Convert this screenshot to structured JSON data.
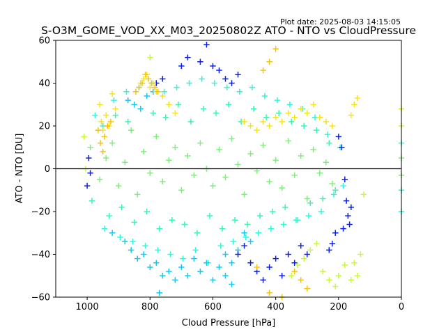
{
  "chart_data": {
    "type": "scatter",
    "title": "S-O3M_GOME_VOD_XX_M03_20250802Z ATO - NTO vs CloudPressure",
    "plot_date": "Plot date: 2025-08-03 14:15:05",
    "xlabel": "Cloud Pressure [hPa]",
    "ylabel": "ATO - NTO [DU]",
    "xlim": [
      1100,
      0
    ],
    "ylim": [
      -60,
      60
    ],
    "x_inverted": true,
    "xticks": [
      1000,
      800,
      600,
      400,
      200,
      0
    ],
    "xtick_labels": [
      "1000",
      "800",
      "600",
      "400",
      "200",
      "0"
    ],
    "yticks": [
      -60,
      -40,
      -20,
      0,
      20,
      40,
      60
    ],
    "ytick_labels": [
      "−60",
      "−40",
      "−20",
      "0",
      "20",
      "40",
      "60"
    ],
    "zero_line": 0,
    "marker": "+",
    "grid": false,
    "colors": {
      "light_green": "#7ef07a",
      "aqua_green": "#38f5b0",
      "cyan": "#2afadc",
      "sky": "#12c8f5",
      "blue": "#0a1ef0",
      "yellow": "#f8e31a",
      "orange": "#f8c010",
      "lime": "#c8f83a"
    },
    "series": [
      {
        "color": "light_green",
        "points": [
          [
            990,
            10
          ],
          [
            960,
            -5
          ],
          [
            940,
            5
          ],
          [
            920,
            12
          ],
          [
            900,
            -8
          ],
          [
            880,
            3
          ],
          [
            860,
            18
          ],
          [
            840,
            -12
          ],
          [
            820,
            8
          ],
          [
            800,
            -2
          ],
          [
            780,
            15
          ],
          [
            760,
            -6
          ],
          [
            740,
            4
          ],
          [
            720,
            10
          ],
          [
            700,
            -10
          ],
          [
            680,
            6
          ],
          [
            660,
            -3
          ],
          [
            640,
            12
          ],
          [
            620,
            0
          ],
          [
            600,
            -8
          ],
          [
            580,
            9
          ],
          [
            560,
            -4
          ],
          [
            540,
            14
          ],
          [
            520,
            2
          ],
          [
            500,
            -12
          ],
          [
            480,
            7
          ],
          [
            460,
            -1
          ],
          [
            440,
            11
          ],
          [
            420,
            -6
          ],
          [
            400,
            4
          ],
          [
            380,
            -9
          ],
          [
            360,
            13
          ],
          [
            340,
            -3
          ],
          [
            320,
            6
          ],
          [
            300,
            -14
          ],
          [
            280,
            9
          ],
          [
            260,
            -2
          ],
          [
            240,
            3
          ],
          [
            220,
            -7
          ],
          [
            0,
            5
          ],
          [
            0,
            -3
          ]
        ]
      },
      {
        "color": "aqua_green",
        "points": [
          [
            985,
            -15
          ],
          [
            950,
            20
          ],
          [
            930,
            -22
          ],
          [
            910,
            25
          ],
          [
            890,
            -18
          ],
          [
            870,
            22
          ],
          [
            850,
            -25
          ],
          [
            830,
            28
          ],
          [
            810,
            -20
          ],
          [
            790,
            26
          ],
          [
            770,
            -28
          ],
          [
            750,
            24
          ],
          [
            730,
            -24
          ],
          [
            710,
            30
          ],
          [
            690,
            -26
          ],
          [
            670,
            22
          ],
          [
            650,
            -30
          ],
          [
            630,
            28
          ],
          [
            610,
            -22
          ],
          [
            590,
            26
          ],
          [
            570,
            -28
          ],
          [
            550,
            30
          ],
          [
            530,
            -24
          ],
          [
            510,
            22
          ],
          [
            490,
            -26
          ],
          [
            470,
            28
          ],
          [
            450,
            -22
          ],
          [
            430,
            24
          ],
          [
            410,
            -20
          ],
          [
            390,
            26
          ],
          [
            370,
            -18
          ],
          [
            350,
            22
          ],
          [
            330,
            -24
          ],
          [
            310,
            20
          ],
          [
            290,
            -16
          ],
          [
            270,
            18
          ],
          [
            250,
            -14
          ],
          [
            230,
            12
          ],
          [
            210,
            -10
          ]
        ]
      },
      {
        "color": "cyan",
        "points": [
          [
            975,
            25
          ],
          [
            945,
            -28
          ],
          [
            915,
            32
          ],
          [
            895,
            -32
          ],
          [
            875,
            36
          ],
          [
            855,
            -34
          ],
          [
            835,
            38
          ],
          [
            815,
            -36
          ],
          [
            795,
            40
          ],
          [
            775,
            -38
          ],
          [
            755,
            36
          ],
          [
            735,
            -40
          ],
          [
            715,
            38
          ],
          [
            695,
            -42
          ],
          [
            675,
            40
          ],
          [
            655,
            -38
          ],
          [
            635,
            42
          ],
          [
            615,
            -44
          ],
          [
            595,
            40
          ],
          [
            575,
            -36
          ],
          [
            555,
            38
          ],
          [
            535,
            -34
          ],
          [
            515,
            36
          ],
          [
            495,
            -32
          ],
          [
            475,
            38
          ],
          [
            455,
            -30
          ],
          [
            435,
            34
          ],
          [
            415,
            -28
          ],
          [
            395,
            32
          ],
          [
            375,
            -26
          ],
          [
            355,
            30
          ],
          [
            335,
            -24
          ],
          [
            315,
            28
          ],
          [
            295,
            -22
          ],
          [
            275,
            24
          ],
          [
            255,
            -20
          ],
          [
            235,
            16
          ],
          [
            215,
            -12
          ],
          [
            195,
            10
          ],
          [
            185,
            -8
          ],
          [
            0,
            -10
          ],
          [
            0,
            12
          ],
          [
            0,
            -20
          ]
        ]
      },
      {
        "color": "sky",
        "points": [
          [
            920,
            -30
          ],
          [
            880,
            -34
          ],
          [
            860,
            -38
          ],
          [
            840,
            -42
          ],
          [
            820,
            -40
          ],
          [
            800,
            -46
          ],
          [
            780,
            -44
          ],
          [
            760,
            -50
          ],
          [
            740,
            -48
          ],
          [
            720,
            -52
          ],
          [
            700,
            -46
          ],
          [
            680,
            -50
          ],
          [
            660,
            -42
          ],
          [
            640,
            -48
          ],
          [
            620,
            -44
          ],
          [
            600,
            -52
          ],
          [
            580,
            -46
          ],
          [
            560,
            -40
          ],
          [
            540,
            -44
          ],
          [
            520,
            -38
          ],
          [
            870,
            32
          ],
          [
            850,
            30
          ],
          [
            830,
            28
          ],
          [
            810,
            34
          ],
          [
            790,
            36
          ],
          [
            770,
            -58
          ],
          [
            560,
            -50
          ],
          [
            540,
            -54
          ],
          [
            500,
            -30
          ],
          [
            480,
            -34
          ]
        ]
      },
      {
        "color": "blue",
        "points": [
          [
            620,
            58
          ],
          [
            640,
            50
          ],
          [
            600,
            48
          ],
          [
            580,
            46
          ],
          [
            560,
            42
          ],
          [
            540,
            40
          ],
          [
            520,
            44
          ],
          [
            680,
            52
          ],
          [
            700,
            48
          ],
          [
            760,
            42
          ],
          [
            780,
            40
          ],
          [
            1000,
            -8
          ],
          [
            995,
            5
          ],
          [
            990,
            -2
          ],
          [
            480,
            -44
          ],
          [
            460,
            -48
          ],
          [
            440,
            -52
          ],
          [
            420,
            -46
          ],
          [
            400,
            -42
          ],
          [
            380,
            -50
          ],
          [
            360,
            -40
          ],
          [
            340,
            -44
          ],
          [
            500,
            -36
          ],
          [
            520,
            -40
          ],
          [
            200,
            15
          ],
          [
            190,
            10
          ],
          [
            180,
            -5
          ],
          [
            175,
            -15
          ],
          [
            170,
            -22
          ],
          [
            165,
            -26
          ],
          [
            160,
            -18
          ],
          [
            185,
            -28
          ],
          [
            210,
            -30
          ],
          [
            220,
            -35
          ],
          [
            230,
            -38
          ],
          [
            300,
            -40
          ],
          [
            320,
            -36
          ]
        ]
      },
      {
        "color": "yellow",
        "points": [
          [
            960,
            30
          ],
          [
            955,
            22
          ],
          [
            950,
            18
          ],
          [
            940,
            25
          ],
          [
            930,
            20
          ],
          [
            920,
            35
          ],
          [
            910,
            28
          ],
          [
            830,
            40
          ],
          [
            820,
            42
          ],
          [
            810,
            44
          ],
          [
            800,
            38
          ],
          [
            790,
            40
          ],
          [
            780,
            36
          ],
          [
            760,
            34
          ],
          [
            740,
            30
          ],
          [
            720,
            26
          ],
          [
            500,
            22
          ],
          [
            480,
            20
          ],
          [
            460,
            18
          ],
          [
            440,
            22
          ],
          [
            420,
            20
          ],
          [
            400,
            24
          ],
          [
            380,
            22
          ],
          [
            360,
            26
          ],
          [
            340,
            24
          ],
          [
            320,
            28
          ],
          [
            300,
            26
          ],
          [
            280,
            30
          ],
          [
            260,
            24
          ],
          [
            240,
            22
          ],
          [
            220,
            20
          ],
          [
            140,
            33
          ],
          [
            150,
            30
          ],
          [
            160,
            25
          ]
        ]
      },
      {
        "color": "orange",
        "points": [
          [
            965,
            18
          ],
          [
            958,
            12
          ],
          [
            950,
            8
          ],
          [
            945,
            15
          ],
          [
            935,
            20
          ],
          [
            925,
            22
          ],
          [
            845,
            36
          ],
          [
            835,
            38
          ],
          [
            825,
            40
          ],
          [
            815,
            44
          ],
          [
            805,
            42
          ],
          [
            795,
            40
          ],
          [
            785,
            38
          ],
          [
            775,
            36
          ],
          [
            400,
            56
          ],
          [
            420,
            50
          ],
          [
            440,
            46
          ],
          [
            300,
            -56
          ],
          [
            320,
            -52
          ],
          [
            340,
            -48
          ],
          [
            460,
            -46
          ],
          [
            420,
            -58
          ],
          [
            380,
            -60
          ]
        ]
      },
      {
        "color": "lime",
        "points": [
          [
            1010,
            15
          ],
          [
            1005,
            0
          ],
          [
            800,
            52
          ],
          [
            350,
            -50
          ],
          [
            330,
            -45
          ],
          [
            310,
            -42
          ],
          [
            290,
            -38
          ],
          [
            270,
            -35
          ],
          [
            250,
            -48
          ],
          [
            230,
            -52
          ],
          [
            210,
            -55
          ],
          [
            200,
            -50
          ],
          [
            180,
            -45
          ],
          [
            160,
            -52
          ],
          [
            150,
            -44
          ],
          [
            140,
            -50
          ],
          [
            120,
            -12
          ],
          [
            130,
            -40
          ],
          [
            0,
            28
          ],
          [
            0,
            20
          ]
        ]
      }
    ]
  }
}
